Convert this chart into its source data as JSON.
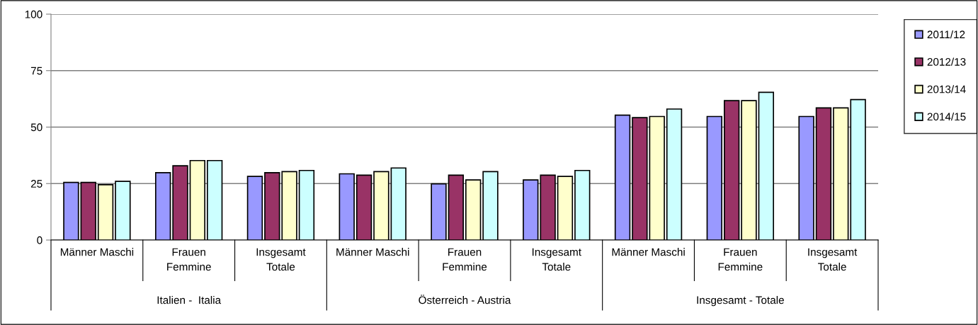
{
  "chart_data": {
    "type": "bar",
    "categories": [
      "Männer Maschi",
      "Frauen\nFemmine",
      "Insgesamt\nTotale",
      "Männer Maschi",
      "Frauen\nFemmine",
      "Insgesamt\nTotale",
      "Männer Maschi",
      "Frauen\nFemmine",
      "Insgesamt\nTotale"
    ],
    "series": [
      {
        "name": "2011/12",
        "color": "#9999ff",
        "values": [
          25.5,
          29.8,
          28.2,
          29.3,
          24.9,
          26.6,
          55.3,
          54.7,
          54.7
        ]
      },
      {
        "name": "2012/13",
        "color": "#993366",
        "values": [
          25.5,
          32.9,
          29.8,
          28.7,
          28.7,
          28.7,
          54.2,
          61.7,
          58.5
        ]
      },
      {
        "name": "2013/14",
        "color": "#ffffcc",
        "values": [
          24.5,
          35.2,
          30.3,
          30.3,
          26.6,
          28.2,
          54.7,
          61.7,
          58.5
        ]
      },
      {
        "name": "2014/15",
        "color": "#ccffff",
        "values": [
          26.0,
          35.2,
          30.8,
          31.9,
          30.3,
          30.8,
          58.0,
          65.4,
          62.2
        ]
      }
    ],
    "annotations": [
      "Italien -  Italia",
      "Österreich - Austria",
      "Insgesamt - Totale"
    ],
    "ylim": [
      0,
      100
    ],
    "yticks": [
      0,
      25,
      50,
      75,
      100
    ],
    "grid": "y",
    "legend": "top right"
  }
}
